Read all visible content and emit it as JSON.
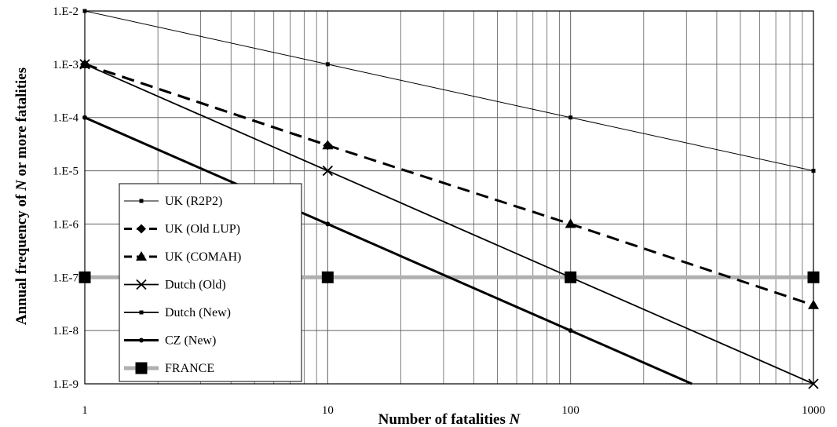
{
  "chart_data": {
    "type": "line",
    "x_scale": "log",
    "y_scale": "log",
    "xlabel": "Number of fatalities N",
    "ylabel": "Annual frequency of N or more fatalities",
    "xlim": [
      1,
      1000
    ],
    "ylim": [
      1e-09,
      0.01
    ],
    "x_ticks": [
      {
        "value": 1,
        "label": "1"
      },
      {
        "value": 10,
        "label": "10"
      },
      {
        "value": 100,
        "label": "100"
      },
      {
        "value": 1000,
        "label": "1000"
      }
    ],
    "y_ticks": [
      {
        "value": 0.01,
        "label": "1.E-2"
      },
      {
        "value": 0.001,
        "label": "1.E-3"
      },
      {
        "value": 0.0001,
        "label": "1.E-4"
      },
      {
        "value": 1e-05,
        "label": "1.E-5"
      },
      {
        "value": 1e-06,
        "label": "1.E-6"
      },
      {
        "value": 1e-07,
        "label": "1.E-7"
      },
      {
        "value": 1e-08,
        "label": "1.E-8"
      },
      {
        "value": 1e-09,
        "label": "1.E-9"
      }
    ],
    "grid": true,
    "legend_position": "bottom-left",
    "series": [
      {
        "name": "UK (R2P2)",
        "marker": "small-square",
        "style": "thin",
        "color": "#000000",
        "points": [
          [
            1,
            0.01
          ],
          [
            10,
            0.001
          ],
          [
            100,
            0.0001
          ],
          [
            1000,
            1e-05
          ]
        ]
      },
      {
        "name": "UK (Old LUP)",
        "marker": "diamond",
        "style": "thick-dash",
        "color": "#000000",
        "points": [
          [
            1,
            0.001
          ],
          [
            10,
            3e-05
          ]
        ]
      },
      {
        "name": "UK (COMAH)",
        "marker": "triangle",
        "style": "thick-dash",
        "color": "#000000",
        "points": [
          [
            1,
            0.001
          ],
          [
            10,
            3e-05
          ],
          [
            100,
            1e-06
          ],
          [
            1000,
            3e-08
          ]
        ]
      },
      {
        "name": "Dutch (Old)",
        "marker": "x",
        "style": "solid",
        "color": "#000000",
        "points": [
          [
            1,
            0.001
          ],
          [
            10,
            1e-05
          ],
          [
            100,
            1e-07
          ],
          [
            1000,
            1e-09
          ]
        ]
      },
      {
        "name": "Dutch (New)",
        "marker": "small-square",
        "style": "solid",
        "color": "#000000",
        "points": [
          [
            1,
            0.0001
          ],
          [
            10,
            1e-06
          ],
          [
            100,
            1e-08
          ],
          [
            316,
            1e-09
          ]
        ]
      },
      {
        "name": "CZ (New)",
        "marker": "dot",
        "style": "thick",
        "color": "#000000",
        "points": [
          [
            1,
            0.0001
          ],
          [
            10,
            1e-06
          ],
          [
            100,
            1e-08
          ],
          [
            316,
            1e-09
          ]
        ]
      },
      {
        "name": "FRANCE",
        "marker": "big-square",
        "style": "gray-thick",
        "color": "#b0b0b0",
        "points": [
          [
            1,
            1e-07
          ],
          [
            10,
            1e-07
          ],
          [
            100,
            1e-07
          ],
          [
            1000,
            1e-07
          ]
        ]
      }
    ]
  }
}
